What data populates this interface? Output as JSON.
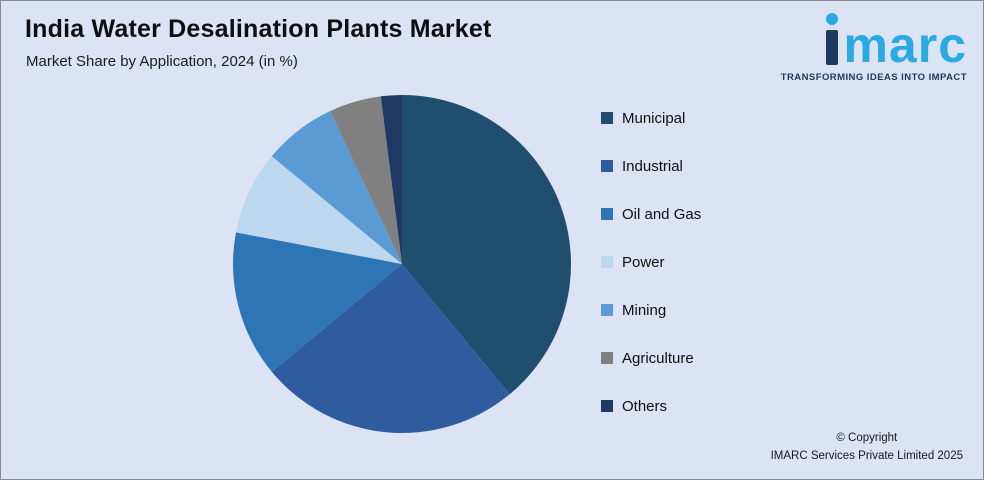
{
  "colors": {
    "background": "#DCE3F4",
    "brand_cyan": "#29ABE2",
    "brand_navy": "#1B3A5C"
  },
  "header": {
    "title": "India Water Desalination Plants Market",
    "subtitle": "Market Share by Application, 2024 (in %)"
  },
  "logo": {
    "brand_rest": "marc",
    "tagline": "TRANSFORMING IDEAS INTO IMPACT"
  },
  "footer": {
    "line1": "© Copyright",
    "line2": "IMARC Services Private Limited 2025"
  },
  "chart_data": {
    "type": "pie",
    "title": "India Water Desalination Plants Market",
    "subtitle": "Market Share by Application, 2024 (in %)",
    "legend_position": "right",
    "start_angle_deg": -90,
    "direction": "clockwise",
    "data_labels_shown": false,
    "slices": [
      {
        "label": "Municipal",
        "value": 39,
        "color": "#204E6F"
      },
      {
        "label": "Industrial",
        "value": 25,
        "color": "#2E5C9E"
      },
      {
        "label": "Oil and Gas",
        "value": 14,
        "color": "#2E75B6"
      },
      {
        "label": "Power",
        "value": 8,
        "color": "#BDD7EE"
      },
      {
        "label": "Mining",
        "value": 7,
        "color": "#5B9BD5"
      },
      {
        "label": "Agriculture",
        "value": 5,
        "color": "#808080"
      },
      {
        "label": "Others",
        "value": 2,
        "color": "#1F3864"
      }
    ]
  }
}
